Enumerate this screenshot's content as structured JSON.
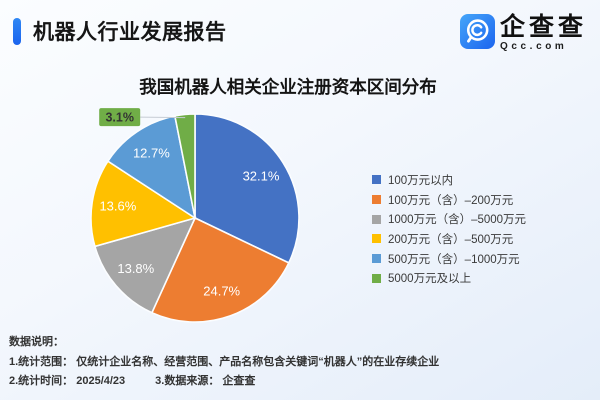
{
  "header": {
    "title": "机器人行业发展报告",
    "accent_color": "#1e6cef",
    "brand": {
      "name": "企查查",
      "domain": "Qcc.com"
    }
  },
  "chart_data": {
    "type": "pie",
    "title": "我国机器人相关企业注册资本区间分布",
    "start_angle": "12-oclock",
    "direction": "clockwise",
    "legend_position": "right",
    "value_suffix": "%",
    "slices": [
      {
        "label": "100万元以内",
        "value": 32.1,
        "color": "#4472C4"
      },
      {
        "label": "100万元（含）–200万元",
        "value": 24.7,
        "color": "#ED7D31"
      },
      {
        "label": "1000万元（含）–5000万元",
        "value": 13.8,
        "color": "#A5A5A5"
      },
      {
        "label": "200万元（含）–500万元",
        "value": 13.6,
        "color": "#FFC000"
      },
      {
        "label": "500万元（含）–1000万元",
        "value": 12.7,
        "color": "#5B9BD5"
      },
      {
        "label": "5000万元及以上",
        "value": 3.1,
        "color": "#70AD47",
        "callout": true
      }
    ]
  },
  "notes": {
    "heading": "数据说明：",
    "scope": "1.统计范围： 仅统计企业名称、经营范围、产品名称包含关键词“机器人”的在业存续企业",
    "time": "2.统计时间： 2025/4/23",
    "source": "3.数据来源： 企查查"
  }
}
